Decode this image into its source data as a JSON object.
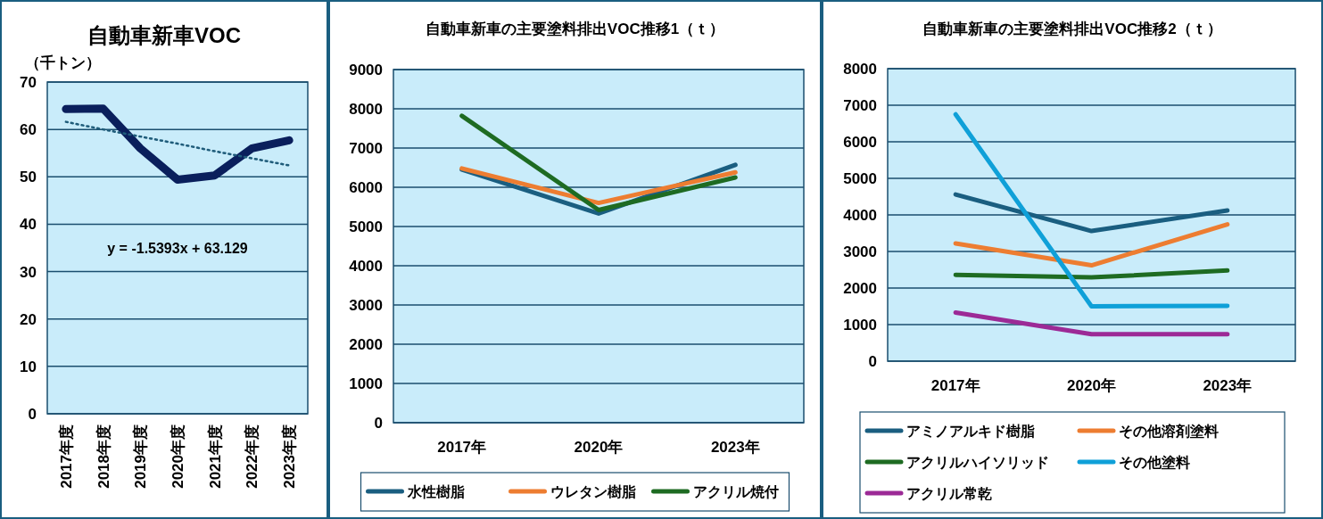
{
  "chart_data": [
    {
      "type": "line",
      "title": "自動車新車VOC",
      "ylabel": "（千トン）",
      "categories": [
        "2017年度",
        "2018年度",
        "2019年度",
        "2020年度",
        "2021年度",
        "2022年度",
        "2023年度"
      ],
      "ylim": [
        0,
        70
      ],
      "yticks": [
        0,
        10,
        20,
        30,
        40,
        50,
        60,
        70
      ],
      "grid": "y",
      "legend": false,
      "annotations": [
        "y = -1.5393x + 63.129"
      ],
      "series": [
        {
          "color": "#0a1f5c",
          "values": [
            64.3,
            64.4,
            56,
            49.4,
            50.3,
            56,
            57.7
          ]
        },
        {
          "color": "#1f5c7a",
          "line_style": "dotted",
          "values": [
            61.6,
            60.0,
            58.5,
            57.0,
            55.4,
            53.9,
            52.4
          ]
        }
      ]
    },
    {
      "type": "line",
      "title": "自動車新車の主要塗料排出VOC推移1（ｔ）",
      "categories": [
        "2017年",
        "2020年",
        "2023年"
      ],
      "ylim": [
        0,
        9000
      ],
      "yticks": [
        0,
        1000,
        2000,
        3000,
        4000,
        5000,
        6000,
        7000,
        8000,
        9000
      ],
      "grid": "y",
      "legend": "bottom",
      "series": [
        {
          "name": "水性樹脂",
          "color": "#1a5e80",
          "values": [
            6450,
            5330,
            6570
          ]
        },
        {
          "name": "ウレタン樹脂",
          "color": "#ed7d31",
          "values": [
            6480,
            5600,
            6380
          ]
        },
        {
          "name": "アクリル焼付",
          "color": "#1e6b22",
          "values": [
            7820,
            5420,
            6250
          ]
        }
      ]
    },
    {
      "type": "line",
      "title": "自動車新車の主要塗料排出VOC推移2（ｔ）",
      "categories": [
        "2017年",
        "2020年",
        "2023年"
      ],
      "ylim": [
        0,
        8000
      ],
      "yticks": [
        0,
        1000,
        2000,
        3000,
        4000,
        5000,
        6000,
        7000,
        8000
      ],
      "grid": "y",
      "legend": "bottom",
      "series": [
        {
          "name": "アミノアルキド樹脂",
          "color": "#1a5e80",
          "values": [
            4560,
            3560,
            4120
          ]
        },
        {
          "name": "その他溶剤塗料",
          "color": "#ed7d31",
          "values": [
            3220,
            2620,
            3740
          ]
        },
        {
          "name": "アクリルハイソリッド",
          "color": "#1e6b22",
          "values": [
            2360,
            2290,
            2480
          ]
        },
        {
          "name": "その他塗料",
          "color": "#0fa0d8",
          "values": [
            6750,
            1500,
            1510
          ]
        },
        {
          "name": "アクリル常乾",
          "color": "#9c2a96",
          "values": [
            1330,
            740,
            740
          ]
        }
      ]
    }
  ]
}
